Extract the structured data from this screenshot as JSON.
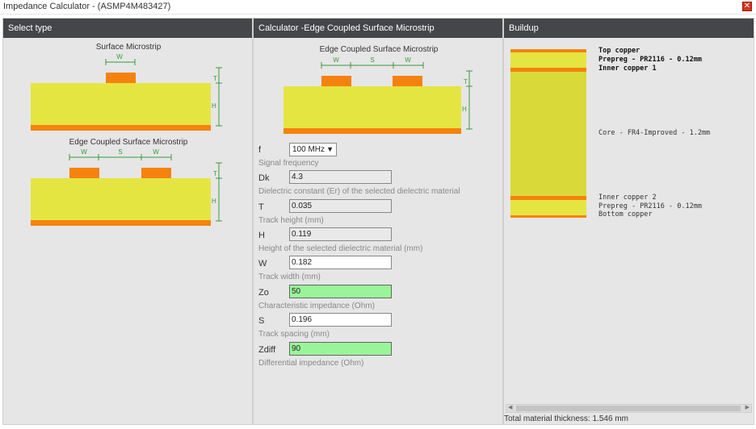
{
  "window": {
    "title": "Impedance Calculator - (ASMP4M483427)",
    "close_glyph": "✕"
  },
  "panel_select": {
    "header": "Select type",
    "options": [
      {
        "label": "Surface Microstrip",
        "w": "W",
        "t": "T",
        "h": "H"
      },
      {
        "label": "Edge Coupled Surface Microstrip",
        "w1": "W",
        "s": "S",
        "w2": "W",
        "t": "T",
        "h": "H"
      }
    ]
  },
  "panel_calc": {
    "header": "Calculator -Edge Coupled Surface Microstrip",
    "diagram": {
      "label": "Edge Coupled Surface Microstrip",
      "w1": "W",
      "s": "S",
      "w2": "W",
      "t": "T",
      "h": "H"
    },
    "fields": {
      "f": {
        "label": "f",
        "value": "100 MHz",
        "help": "Signal frequency"
      },
      "dk": {
        "label": "Dk",
        "value": "4.3",
        "help": "Dielectric constant (Er) of the selected dielectric material"
      },
      "t": {
        "label": "T",
        "value": "0.035",
        "help": "Track height (mm)"
      },
      "h": {
        "label": "H",
        "value": "0.119",
        "help": "Height of the selected dielectric material (mm)"
      },
      "w": {
        "label": "W",
        "value": "0.182",
        "help": "Track width (mm)"
      },
      "zo": {
        "label": "Zo",
        "value": "50",
        "help": "Characteristic impedance (Ohm)"
      },
      "s": {
        "label": "S",
        "value": "0.196",
        "help": "Track spacing (mm)"
      },
      "zdiff": {
        "label": "Zdiff",
        "value": "90",
        "help": "Differential impedance (Ohm)"
      }
    }
  },
  "panel_buildup": {
    "header": "Buildup",
    "labels": {
      "top_copper": "Top copper",
      "prepreg_top": "Prepreg - PR2116 - 0.12mm",
      "inner1": "Inner copper 1",
      "core": "Core - FR4-Improved - 1.2mm",
      "inner2": "Inner copper 2",
      "prepreg_bottom": "Prepreg - PR2116 - 0.12mm",
      "bottom_copper": "Bottom copper"
    },
    "total": "Total material thickness: 1.546 mm"
  },
  "colors": {
    "header_bg": "#444649",
    "dielectric": "#e5e542",
    "copper": "#f5820f",
    "core": "#d9d93a",
    "dimension": "#3a9a3a",
    "result_bg": "#99f599"
  }
}
